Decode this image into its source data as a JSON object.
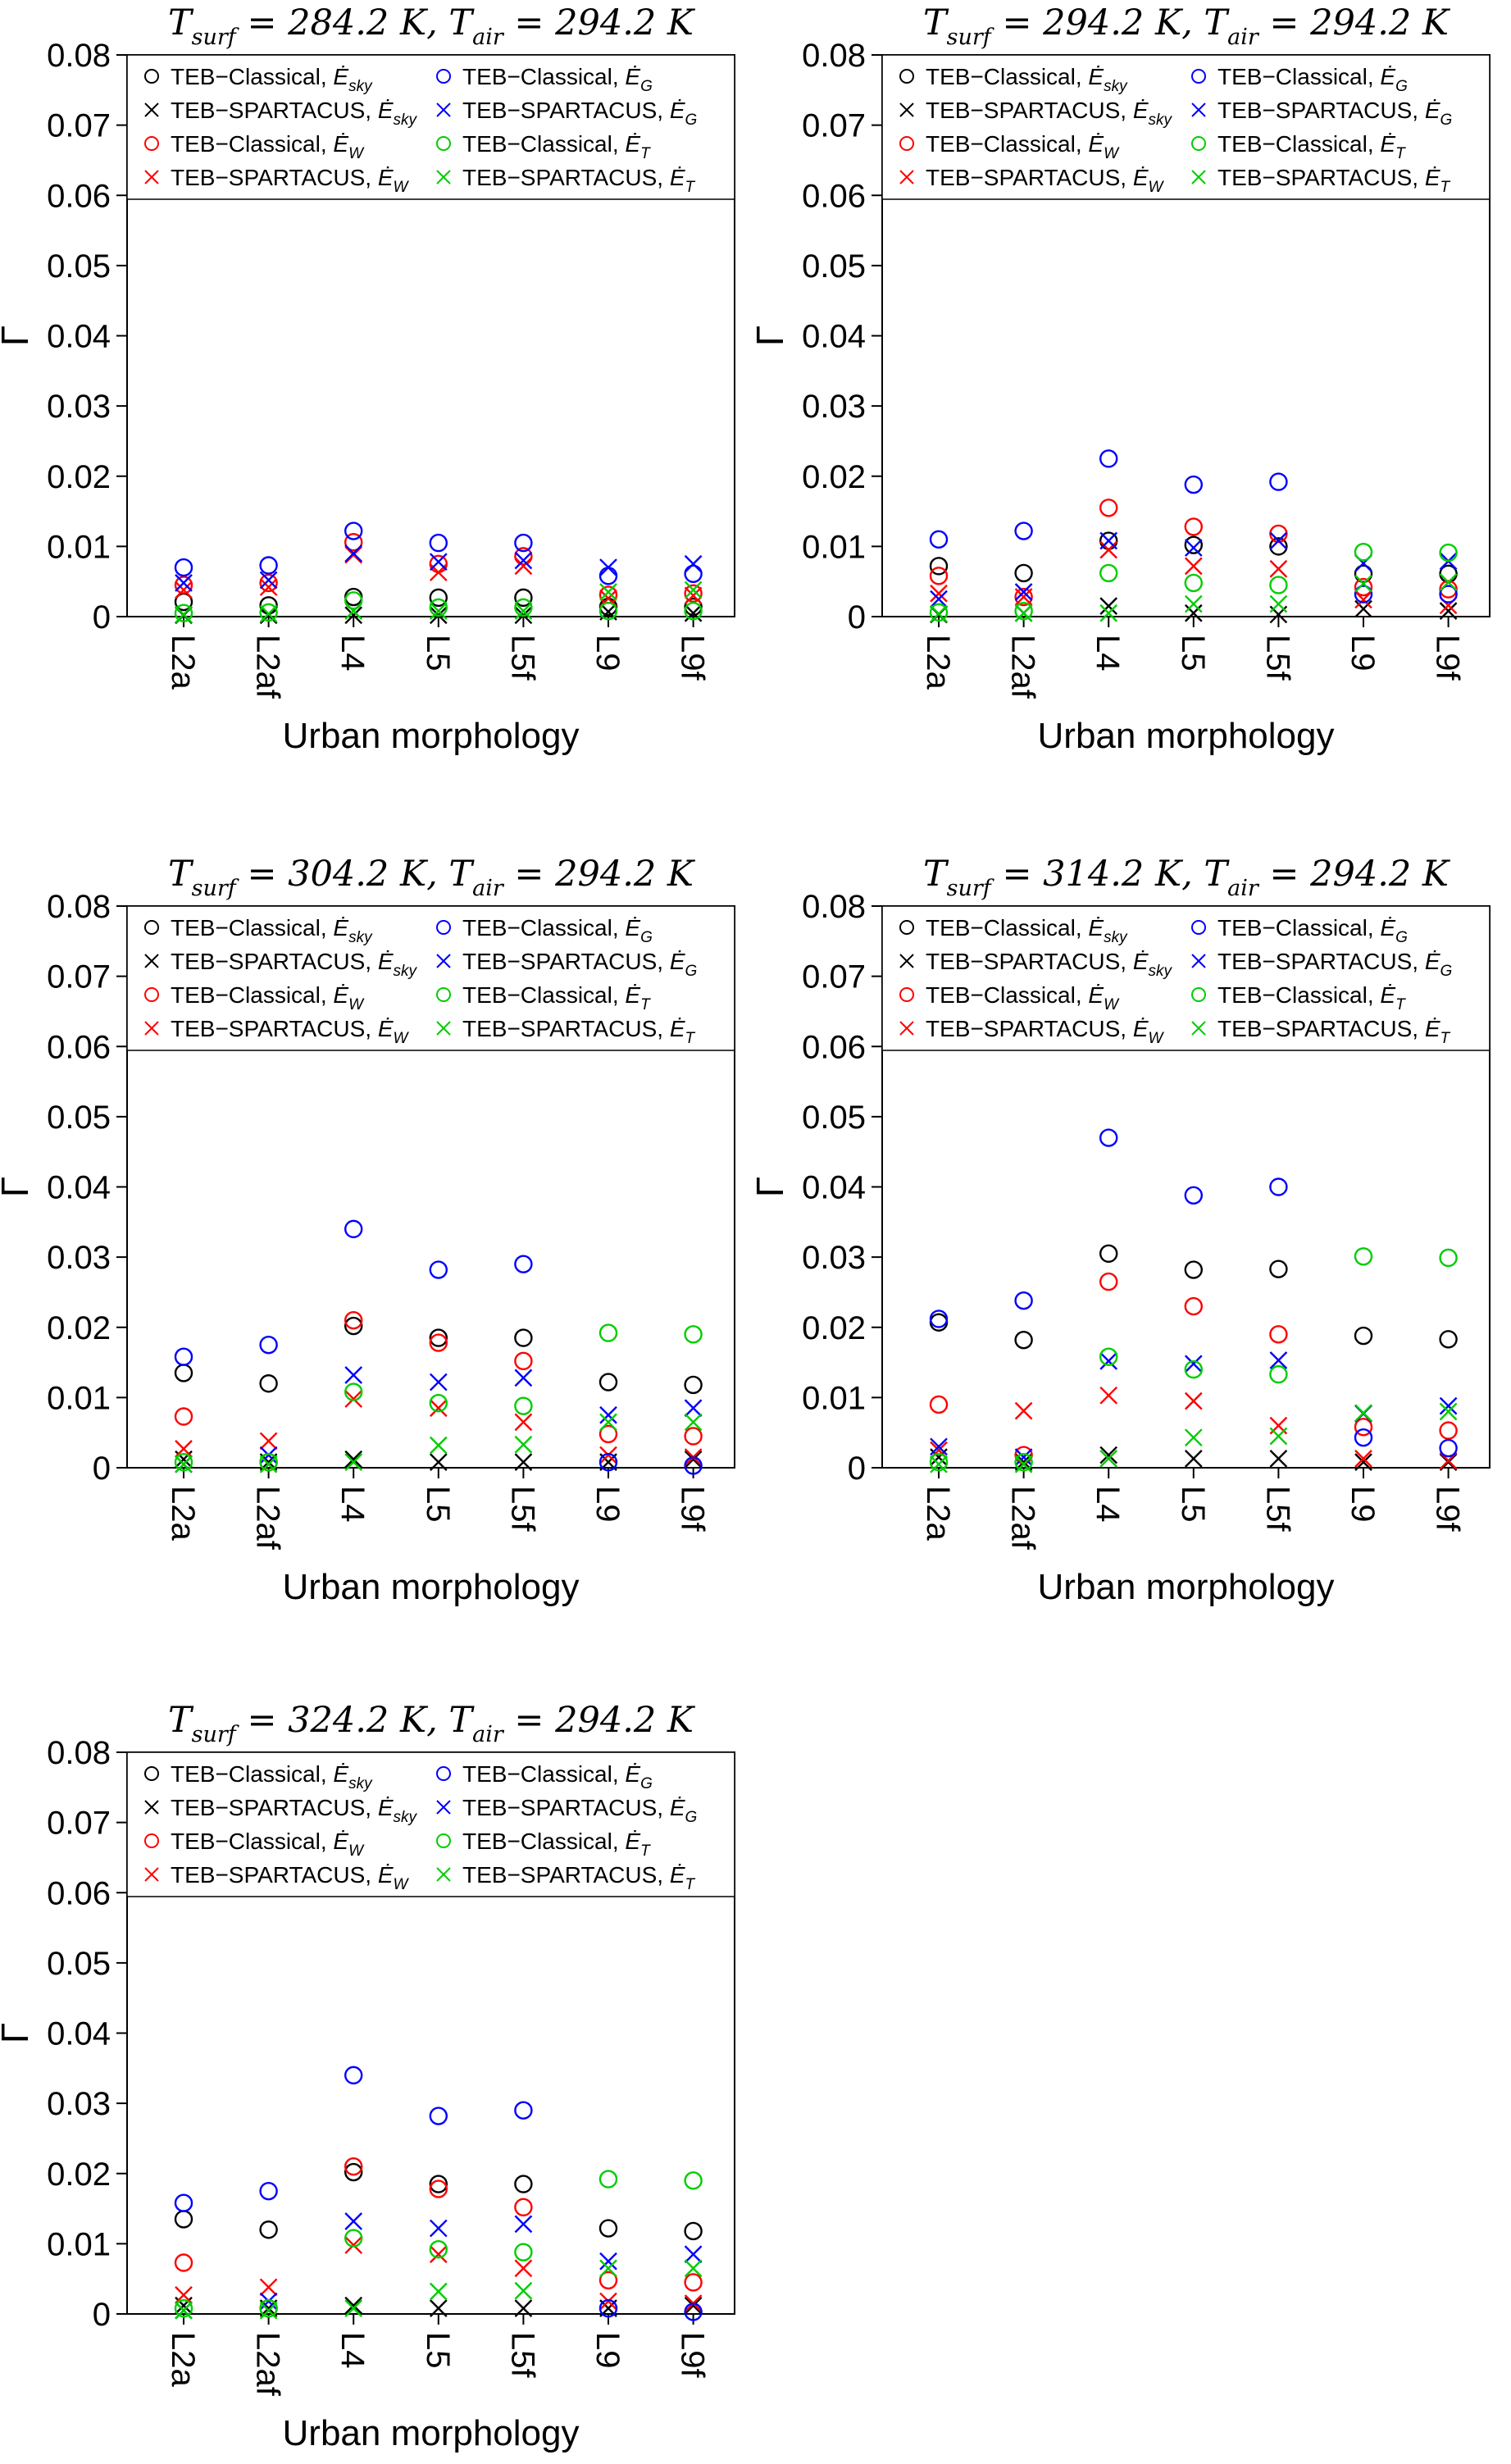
{
  "figure": {
    "ylabel": "Γ",
    "xlabel": "Urban morphology",
    "y_tick_labels": [
      "0",
      "0.01",
      "0.02",
      "0.03",
      "0.04",
      "0.05",
      "0.06",
      "0.07",
      "0.08"
    ],
    "categories": [
      "L2a",
      "L2af",
      "L4",
      "L5",
      "L5f",
      "L9",
      "L9f"
    ],
    "e_symbol": "Ė",
    "colors": {
      "sky": "#000000",
      "wall": "#FF0000",
      "ground": "#0000FF",
      "roof": "#00CD00"
    },
    "legend_order_note": "left column series 0-3, right column series 4-7"
  },
  "chart_data": [
    {
      "type": "scatter",
      "title_plain": "T_surf = 284.2 K, T_air = 294.2 K",
      "title_tspans": [
        {
          "t": "T",
          "style": "var"
        },
        {
          "t": "surf",
          "style": "sub"
        },
        {
          "t": " = 284.2 K, ",
          "style": "plain"
        },
        {
          "t": "T",
          "style": "var"
        },
        {
          "t": "air",
          "style": "sub"
        },
        {
          "t": " = 294.2 K",
          "style": "plain"
        }
      ],
      "xlabel": "Urban morphology",
      "ylabel": "Γ",
      "ylim": [
        0,
        0.08
      ],
      "categories": [
        "L2a",
        "L2af",
        "L4",
        "L5",
        "L5f",
        "L9",
        "L9f"
      ],
      "series": [
        {
          "name": "TEB−Classical, Ė_sky",
          "prefix": "TEB−Classical, ",
          "sub": "sky",
          "marker": "circle",
          "color": "#000000",
          "values": [
            0.0021,
            0.0016,
            0.0028,
            0.0027,
            0.0027,
            0.0014,
            0.0014
          ]
        },
        {
          "name": "TEB−SPARTACUS, Ė_sky",
          "prefix": "TEB−SPARTACUS, ",
          "sub": "sky",
          "marker": "cross",
          "color": "#000000",
          "values": [
            0.0002,
            0.0002,
            0.0002,
            0.0002,
            0.0002,
            0.0007,
            0.0005
          ]
        },
        {
          "name": "TEB−Classical, Ė_W",
          "prefix": "TEB−Classical, ",
          "sub": "W",
          "marker": "circle",
          "color": "#FF0000",
          "values": [
            0.0045,
            0.0048,
            0.0106,
            0.0075,
            0.0086,
            0.0031,
            0.0033
          ]
        },
        {
          "name": "TEB−SPARTACUS, Ė_W",
          "prefix": "TEB−SPARTACUS, ",
          "sub": "W",
          "marker": "cross",
          "color": "#FF0000",
          "values": [
            0.0038,
            0.0042,
            0.0088,
            0.0063,
            0.0072,
            0.0026,
            0.003
          ]
        },
        {
          "name": "TEB−Classical, Ė_G",
          "prefix": "TEB−Classical, ",
          "sub": "G",
          "marker": "circle",
          "color": "#0000FF",
          "values": [
            0.007,
            0.0073,
            0.0122,
            0.0105,
            0.0105,
            0.0058,
            0.0061
          ]
        },
        {
          "name": "TEB−SPARTACUS, Ė_G",
          "prefix": "TEB−SPARTACUS, ",
          "sub": "G",
          "marker": "cross",
          "color": "#0000FF",
          "values": [
            0.0048,
            0.0052,
            0.009,
            0.0078,
            0.008,
            0.007,
            0.0075
          ]
        },
        {
          "name": "TEB−Classical, Ė_T",
          "prefix": "TEB−Classical, ",
          "sub": "T",
          "marker": "circle",
          "color": "#00CD00",
          "values": [
            0.0005,
            0.0006,
            0.0023,
            0.0013,
            0.0013,
            0.0008,
            0.0008
          ]
        },
        {
          "name": "TEB−SPARTACUS, Ė_T",
          "prefix": "TEB−SPARTACUS, ",
          "sub": "T",
          "marker": "cross",
          "color": "#00CD00",
          "values": [
            0.0003,
            0.0004,
            0.0008,
            0.0008,
            0.0008,
            0.0035,
            0.0038
          ]
        }
      ]
    },
    {
      "type": "scatter",
      "title_plain": "T_surf = 294.2 K, T_air = 294.2 K",
      "title_tspans": [
        {
          "t": "T",
          "style": "var"
        },
        {
          "t": "surf",
          "style": "sub"
        },
        {
          "t": " = 294.2 K, ",
          "style": "plain"
        },
        {
          "t": "T",
          "style": "var"
        },
        {
          "t": "air",
          "style": "sub"
        },
        {
          "t": " = 294.2 K",
          "style": "plain"
        }
      ],
      "xlabel": "Urban morphology",
      "ylabel": "Γ",
      "ylim": [
        0,
        0.08
      ],
      "categories": [
        "L2a",
        "L2af",
        "L4",
        "L5",
        "L5f",
        "L9",
        "L9f"
      ],
      "series": [
        {
          "name": "TEB−Classical, Ė_sky",
          "prefix": "TEB−Classical, ",
          "sub": "sky",
          "marker": "circle",
          "color": "#000000",
          "values": [
            0.0072,
            0.0062,
            0.0108,
            0.0102,
            0.01,
            0.0061,
            0.0061
          ]
        },
        {
          "name": "TEB−SPARTACUS, Ė_sky",
          "prefix": "TEB−SPARTACUS, ",
          "sub": "sky",
          "marker": "cross",
          "color": "#000000",
          "values": [
            0.0003,
            0.0005,
            0.0015,
            0.0005,
            0.0003,
            0.0011,
            0.0008
          ]
        },
        {
          "name": "TEB−Classical, Ė_W",
          "prefix": "TEB−Classical, ",
          "sub": "W",
          "marker": "circle",
          "color": "#FF0000",
          "values": [
            0.0058,
            0.0028,
            0.0155,
            0.0128,
            0.0118,
            0.0042,
            0.0039
          ]
        },
        {
          "name": "TEB−SPARTACUS, Ė_W",
          "prefix": "TEB−SPARTACUS, ",
          "sub": "W",
          "marker": "cross",
          "color": "#FF0000",
          "values": [
            0.0033,
            0.0028,
            0.0095,
            0.0072,
            0.0068,
            0.0024,
            0.0016
          ]
        },
        {
          "name": "TEB−Classical, Ė_G",
          "prefix": "TEB−Classical, ",
          "sub": "G",
          "marker": "circle",
          "color": "#0000FF",
          "values": [
            0.011,
            0.0122,
            0.0225,
            0.0188,
            0.0192,
            0.0032,
            0.0032
          ]
        },
        {
          "name": "TEB−SPARTACUS, Ė_G",
          "prefix": "TEB−SPARTACUS, ",
          "sub": "G",
          "marker": "cross",
          "color": "#0000FF",
          "values": [
            0.0025,
            0.0035,
            0.0108,
            0.0098,
            0.0108,
            0.0076,
            0.0079
          ]
        },
        {
          "name": "TEB−Classical, Ė_T",
          "prefix": "TEB−Classical, ",
          "sub": "T",
          "marker": "circle",
          "color": "#00CD00",
          "values": [
            0.0006,
            0.0008,
            0.0062,
            0.0048,
            0.0045,
            0.0092,
            0.0091
          ]
        },
        {
          "name": "TEB−SPARTACUS, Ė_T",
          "prefix": "TEB−SPARTACUS, ",
          "sub": "T",
          "marker": "cross",
          "color": "#00CD00",
          "values": [
            0.0004,
            0.0005,
            0.0005,
            0.0018,
            0.0018,
            0.0047,
            0.0049
          ]
        }
      ]
    },
    {
      "type": "scatter",
      "title_plain": "T_surf = 304.2 K, T_air = 294.2 K",
      "title_tspans": [
        {
          "t": "T",
          "style": "var"
        },
        {
          "t": "surf",
          "style": "sub"
        },
        {
          "t": " = 304.2 K, ",
          "style": "plain"
        },
        {
          "t": "T",
          "style": "var"
        },
        {
          "t": "air",
          "style": "sub"
        },
        {
          "t": " = 294.2 K",
          "style": "plain"
        }
      ],
      "xlabel": "Urban morphology",
      "ylabel": "Γ",
      "ylim": [
        0,
        0.08
      ],
      "categories": [
        "L2a",
        "L2af",
        "L4",
        "L5",
        "L5f",
        "L9",
        "L9f"
      ],
      "series": [
        {
          "name": "TEB−Classical, Ė_sky",
          "prefix": "TEB−Classical, ",
          "sub": "sky",
          "marker": "circle",
          "color": "#000000",
          "values": [
            0.0135,
            0.012,
            0.0202,
            0.0185,
            0.0185,
            0.0122,
            0.0118
          ]
        },
        {
          "name": "TEB−SPARTACUS, Ė_sky",
          "prefix": "TEB−SPARTACUS, ",
          "sub": "sky",
          "marker": "cross",
          "color": "#000000",
          "values": [
            0.0012,
            0.0008,
            0.0012,
            0.0008,
            0.0008,
            0.0008,
            0.0012
          ]
        },
        {
          "name": "TEB−Classical, Ė_W",
          "prefix": "TEB−Classical, ",
          "sub": "W",
          "marker": "circle",
          "color": "#FF0000",
          "values": [
            0.0073,
            0.0008,
            0.021,
            0.0178,
            0.0152,
            0.0048,
            0.0045
          ]
        },
        {
          "name": "TEB−SPARTACUS, Ė_W",
          "prefix": "TEB−SPARTACUS, ",
          "sub": "W",
          "marker": "cross",
          "color": "#FF0000",
          "values": [
            0.0027,
            0.0038,
            0.0098,
            0.0085,
            0.0065,
            0.0018,
            0.0015
          ]
        },
        {
          "name": "TEB−Classical, Ė_G",
          "prefix": "TEB−Classical, ",
          "sub": "G",
          "marker": "circle",
          "color": "#0000FF",
          "values": [
            0.0158,
            0.0175,
            0.034,
            0.0282,
            0.029,
            0.0008,
            0.0003
          ]
        },
        {
          "name": "TEB−SPARTACUS, Ė_G",
          "prefix": "TEB−SPARTACUS, ",
          "sub": "G",
          "marker": "cross",
          "color": "#0000FF",
          "values": [
            0.0005,
            0.0018,
            0.0132,
            0.0122,
            0.0128,
            0.0075,
            0.0085
          ]
        },
        {
          "name": "TEB−Classical, Ė_T",
          "prefix": "TEB−Classical, ",
          "sub": "T",
          "marker": "circle",
          "color": "#00CD00",
          "values": [
            0.0008,
            0.0008,
            0.0108,
            0.0092,
            0.0088,
            0.0192,
            0.019
          ]
        },
        {
          "name": "TEB−SPARTACUS, Ė_T",
          "prefix": "TEB−SPARTACUS, ",
          "sub": "T",
          "marker": "cross",
          "color": "#00CD00",
          "values": [
            0.0005,
            0.0005,
            0.0008,
            0.0032,
            0.0033,
            0.0065,
            0.0065
          ]
        }
      ]
    },
    {
      "type": "scatter",
      "title_plain": "T_surf = 314.2 K, T_air = 294.2 K",
      "title_tspans": [
        {
          "t": "T",
          "style": "var"
        },
        {
          "t": "surf",
          "style": "sub"
        },
        {
          "t": " = 314.2 K, ",
          "style": "plain"
        },
        {
          "t": "T",
          "style": "var"
        },
        {
          "t": "air",
          "style": "sub"
        },
        {
          "t": " = 294.2 K",
          "style": "plain"
        }
      ],
      "xlabel": "Urban morphology",
      "ylabel": "Γ",
      "ylim": [
        0,
        0.08
      ],
      "categories": [
        "L2a",
        "L2af",
        "L4",
        "L5",
        "L5f",
        "L9",
        "L9f"
      ],
      "series": [
        {
          "name": "TEB−Classical, Ė_sky",
          "prefix": "TEB−Classical, ",
          "sub": "sky",
          "marker": "circle",
          "color": "#000000",
          "values": [
            0.0207,
            0.0182,
            0.0305,
            0.0282,
            0.0283,
            0.0188,
            0.0183
          ]
        },
        {
          "name": "TEB−SPARTACUS, Ė_sky",
          "prefix": "TEB−SPARTACUS, ",
          "sub": "sky",
          "marker": "cross",
          "color": "#000000",
          "values": [
            0.0015,
            0.0008,
            0.0018,
            0.0013,
            0.0013,
            0.0008,
            0.0008
          ]
        },
        {
          "name": "TEB−Classical, Ė_W",
          "prefix": "TEB−Classical, ",
          "sub": "W",
          "marker": "circle",
          "color": "#FF0000",
          "values": [
            0.009,
            0.0018,
            0.0265,
            0.023,
            0.019,
            0.0058,
            0.0053
          ]
        },
        {
          "name": "TEB−SPARTACUS, Ė_W",
          "prefix": "TEB−SPARTACUS, ",
          "sub": "W",
          "marker": "cross",
          "color": "#FF0000",
          "values": [
            0.0025,
            0.0081,
            0.0103,
            0.0095,
            0.006,
            0.0013,
            0.001
          ]
        },
        {
          "name": "TEB−Classical, Ė_G",
          "prefix": "TEB−Classical, ",
          "sub": "G",
          "marker": "circle",
          "color": "#0000FF",
          "values": [
            0.0212,
            0.0238,
            0.047,
            0.0388,
            0.04,
            0.0043,
            0.0028
          ]
        },
        {
          "name": "TEB−SPARTACUS, Ė_G",
          "prefix": "TEB−SPARTACUS, ",
          "sub": "G",
          "marker": "cross",
          "color": "#0000FF",
          "values": [
            0.003,
            0.0015,
            0.0152,
            0.0148,
            0.0153,
            0.0077,
            0.0088
          ]
        },
        {
          "name": "TEB−Classical, Ė_T",
          "prefix": "TEB−Classical, ",
          "sub": "T",
          "marker": "circle",
          "color": "#00CD00",
          "values": [
            0.0008,
            0.0008,
            0.0158,
            0.014,
            0.0133,
            0.0301,
            0.0299
          ]
        },
        {
          "name": "TEB−SPARTACUS, Ė_T",
          "prefix": "TEB−SPARTACUS, ",
          "sub": "T",
          "marker": "cross",
          "color": "#00CD00",
          "values": [
            0.0005,
            0.0005,
            0.0013,
            0.0043,
            0.0045,
            0.0078,
            0.008
          ]
        }
      ]
    },
    {
      "type": "scatter",
      "title_plain": "T_surf = 324.2 K, T_air = 294.2 K",
      "title_tspans": [
        {
          "t": "T",
          "style": "var"
        },
        {
          "t": "surf",
          "style": "sub"
        },
        {
          "t": " = 324.2 K, ",
          "style": "plain"
        },
        {
          "t": "T",
          "style": "var"
        },
        {
          "t": "air",
          "style": "sub"
        },
        {
          "t": " = 294.2 K",
          "style": "plain"
        }
      ],
      "xlabel": "Urban morphology",
      "ylabel": "Γ",
      "ylim": [
        0,
        0.08
      ],
      "categories": [
        "L2a",
        "L2af",
        "L4",
        "L5",
        "L5f",
        "L9",
        "L9f"
      ],
      "series": [
        {
          "name": "TEB−Classical, Ė_sky",
          "prefix": "TEB−Classical, ",
          "sub": "sky",
          "marker": "circle",
          "color": "#000000",
          "values": [
            0.0135,
            0.012,
            0.0202,
            0.0185,
            0.0185,
            0.0122,
            0.0118
          ]
        },
        {
          "name": "TEB−SPARTACUS, Ė_sky",
          "prefix": "TEB−SPARTACUS, ",
          "sub": "sky",
          "marker": "cross",
          "color": "#000000",
          "values": [
            0.0012,
            0.0008,
            0.0012,
            0.0008,
            0.0008,
            0.0008,
            0.0012
          ]
        },
        {
          "name": "TEB−Classical, Ė_W",
          "prefix": "TEB−Classical, ",
          "sub": "W",
          "marker": "circle",
          "color": "#FF0000",
          "values": [
            0.0073,
            0.0008,
            0.021,
            0.0178,
            0.0152,
            0.0048,
            0.0045
          ]
        },
        {
          "name": "TEB−SPARTACUS, Ė_W",
          "prefix": "TEB−SPARTACUS, ",
          "sub": "W",
          "marker": "cross",
          "color": "#FF0000",
          "values": [
            0.0027,
            0.0038,
            0.0098,
            0.0085,
            0.0065,
            0.0018,
            0.0015
          ]
        },
        {
          "name": "TEB−Classical, Ė_G",
          "prefix": "TEB−Classical, ",
          "sub": "G",
          "marker": "circle",
          "color": "#0000FF",
          "values": [
            0.0158,
            0.0175,
            0.034,
            0.0282,
            0.029,
            0.0008,
            0.0003
          ]
        },
        {
          "name": "TEB−SPARTACUS, Ė_G",
          "prefix": "TEB−SPARTACUS, ",
          "sub": "G",
          "marker": "cross",
          "color": "#0000FF",
          "values": [
            0.0005,
            0.0018,
            0.0132,
            0.0122,
            0.0128,
            0.0075,
            0.0085
          ]
        },
        {
          "name": "TEB−Classical, Ė_T",
          "prefix": "TEB−Classical, ",
          "sub": "T",
          "marker": "circle",
          "color": "#00CD00",
          "values": [
            0.0008,
            0.0008,
            0.0108,
            0.0092,
            0.0088,
            0.0192,
            0.019
          ]
        },
        {
          "name": "TEB−SPARTACUS, Ė_T",
          "prefix": "TEB−SPARTACUS, ",
          "sub": "T",
          "marker": "cross",
          "color": "#00CD00",
          "values": [
            0.0005,
            0.0005,
            0.0008,
            0.0032,
            0.0033,
            0.0065,
            0.0065
          ]
        }
      ]
    }
  ]
}
